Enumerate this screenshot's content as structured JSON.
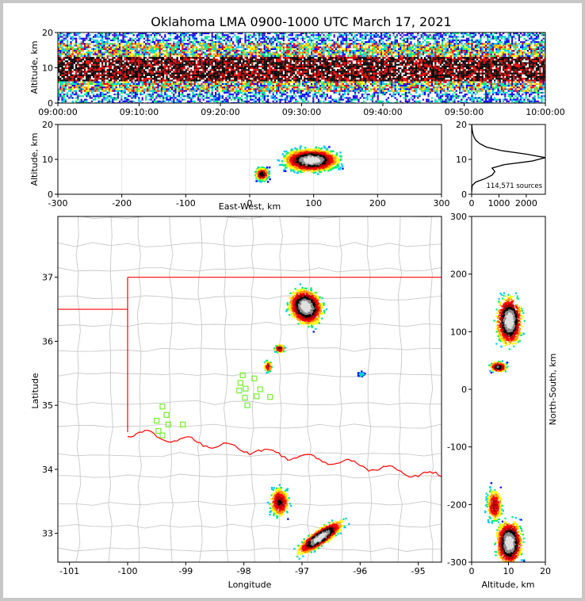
{
  "title": "Oklahoma LMA 0900-1000 UTC March 17, 2021",
  "chart_data": [
    {
      "id": "time_height",
      "type": "heatmap",
      "title": "Oklahoma LMA 0900-1000 UTC March 17, 2021",
      "xlabel": "",
      "ylabel": "Altitude, km",
      "xlim": [
        "09:00:00",
        "10:00:00"
      ],
      "ylim": [
        0,
        20
      ],
      "xticks": [
        "09:00:00",
        "09:10:00",
        "09:20:00",
        "09:30:00",
        "09:40:00",
        "09:50:00",
        "10:00:00"
      ],
      "yticks": [
        "0",
        "10",
        "20"
      ],
      "core_altitude_km": [
        6,
        13
      ],
      "grid": false
    },
    {
      "id": "ew_altitude",
      "type": "heatmap",
      "xlabel": "East-West, km",
      "ylabel": "Altitude, km",
      "xlim": [
        -300,
        300
      ],
      "ylim": [
        0,
        20
      ],
      "xticks": [
        "-300",
        "-200",
        "-100",
        "0",
        "100",
        "200",
        "300"
      ],
      "yticks": [
        "0",
        "10",
        "20"
      ],
      "grid": true
    },
    {
      "id": "altitude_histogram",
      "type": "line",
      "xlim": [
        0,
        2700
      ],
      "ylim": [
        0,
        20
      ],
      "xticks": [
        "0",
        "1000",
        "2000"
      ],
      "yticks": [
        "0",
        "10",
        "20"
      ],
      "annotation": "114,571 sources",
      "points": [
        [
          0,
          0.5
        ],
        [
          20,
          2.5
        ],
        [
          150,
          3.5
        ],
        [
          500,
          4.5
        ],
        [
          750,
          5.5
        ],
        [
          850,
          6.5
        ],
        [
          750,
          7.5
        ],
        [
          1200,
          8.5
        ],
        [
          2200,
          9.5
        ],
        [
          2700,
          10.5
        ],
        [
          2000,
          11.5
        ],
        [
          1100,
          12.5
        ],
        [
          550,
          13.5
        ],
        [
          300,
          14.5
        ],
        [
          150,
          15.5
        ],
        [
          80,
          16.5
        ],
        [
          40,
          17.5
        ],
        [
          20,
          18.5
        ],
        [
          10,
          19.5
        ],
        [
          5,
          20
        ]
      ]
    },
    {
      "id": "plan_view",
      "type": "heatmap",
      "xlabel": "Longitude",
      "ylabel": "Latitude",
      "xlim": [
        -101.2,
        -94.6
      ],
      "ylim": [
        32.55,
        37.95
      ],
      "xticks": [
        "-101",
        "-100",
        "-99",
        "-98",
        "-97",
        "-96",
        "-95"
      ],
      "yticks": [
        "33",
        "34",
        "35",
        "36",
        "37"
      ],
      "stations": [
        [
          -99.4,
          34.98
        ],
        [
          -99.33,
          34.85
        ],
        [
          -99.5,
          34.76
        ],
        [
          -99.3,
          34.7
        ],
        [
          -99.05,
          34.7
        ],
        [
          -99.47,
          34.6
        ],
        [
          -99.4,
          34.53
        ],
        [
          -98.02,
          35.47
        ],
        [
          -98.06,
          35.35
        ],
        [
          -98.08,
          35.23
        ],
        [
          -97.97,
          35.26
        ],
        [
          -97.82,
          35.42
        ],
        [
          -97.72,
          35.25
        ],
        [
          -97.78,
          35.14
        ],
        [
          -97.98,
          35.12
        ],
        [
          -97.94,
          35.0
        ],
        [
          -97.55,
          35.13
        ]
      ],
      "station_color": "#76ee2f",
      "border_color": "#ff0000",
      "county_color": "#c8c8c8"
    },
    {
      "id": "altitude_ns",
      "type": "heatmap",
      "xlabel": "Altitude, km",
      "ylabel": "North-South, km",
      "xlim": [
        0,
        20
      ],
      "ylim": [
        -300,
        300
      ],
      "xticks": [
        "0",
        "10",
        "20"
      ],
      "yticks": [
        "-300",
        "-200",
        "-100",
        "0",
        "100",
        "200",
        "300"
      ]
    }
  ]
}
